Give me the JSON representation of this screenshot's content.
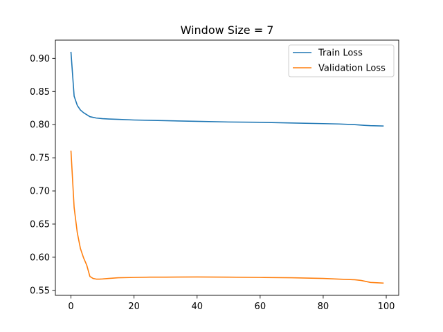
{
  "chart_data": {
    "type": "line",
    "title": "Window Size = 7",
    "xlabel": "",
    "ylabel": "",
    "xlim": [
      -4.95,
      103.95
    ],
    "ylim": [
      0.5425,
      0.9275
    ],
    "xticks": [
      0,
      20,
      40,
      60,
      80,
      100
    ],
    "yticks": [
      0.55,
      0.6,
      0.65,
      0.7,
      0.75,
      0.8,
      0.85,
      0.9
    ],
    "ytick_labels": [
      "0.55",
      "0.60",
      "0.65",
      "0.70",
      "0.75",
      "0.80",
      "0.85",
      "0.90"
    ],
    "grid": false,
    "legend_position": "top-right",
    "series": [
      {
        "name": "Train Loss",
        "color": "#1f77b4",
        "x": [
          0,
          1,
          2,
          3,
          4,
          5,
          6,
          7,
          8,
          10,
          12,
          15,
          20,
          25,
          30,
          40,
          50,
          60,
          70,
          80,
          85,
          90,
          93,
          95,
          99
        ],
        "y": [
          0.909,
          0.843,
          0.829,
          0.822,
          0.818,
          0.815,
          0.812,
          0.811,
          0.81,
          0.809,
          0.8085,
          0.808,
          0.807,
          0.8065,
          0.806,
          0.805,
          0.804,
          0.8035,
          0.8025,
          0.8015,
          0.801,
          0.8,
          0.799,
          0.7985,
          0.798
        ]
      },
      {
        "name": "Validation Loss",
        "color": "#ff7f0e",
        "x": [
          0,
          1,
          2,
          3,
          4,
          5,
          6,
          7,
          8,
          9,
          10,
          12,
          15,
          20,
          25,
          30,
          40,
          50,
          60,
          70,
          80,
          85,
          90,
          92,
          95,
          99
        ],
        "y": [
          0.76,
          0.675,
          0.637,
          0.613,
          0.599,
          0.588,
          0.571,
          0.568,
          0.567,
          0.567,
          0.5672,
          0.568,
          0.569,
          0.5695,
          0.57,
          0.57,
          0.5702,
          0.57,
          0.5695,
          0.569,
          0.568,
          0.567,
          0.566,
          0.565,
          0.562,
          0.561
        ]
      }
    ]
  }
}
